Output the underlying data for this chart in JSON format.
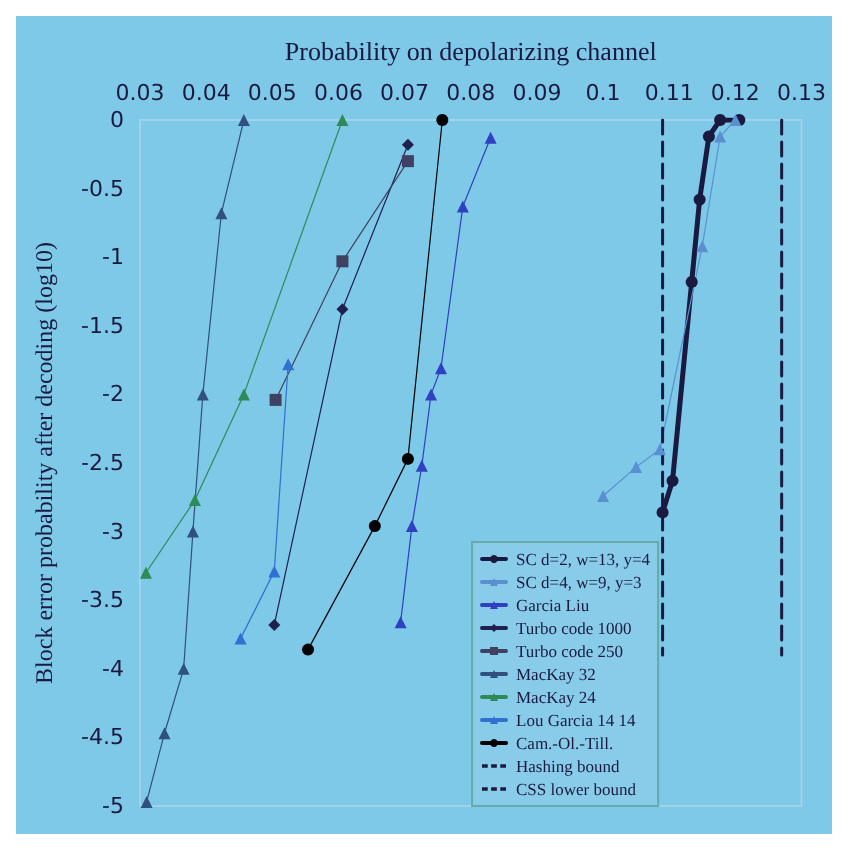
{
  "chart_data": {
    "type": "line",
    "xlabel": "Probability on depolarizing channel",
    "ylabel": "Block error probability after decoding (log10)",
    "xlim": [
      0.03,
      0.13
    ],
    "xticks": [
      0.03,
      0.04,
      0.05,
      0.06,
      0.07,
      0.08,
      0.09,
      0.1,
      0.11,
      0.12,
      0.13
    ],
    "ylim": [
      -5,
      0
    ],
    "yticks": [
      0,
      -0.5,
      -1,
      -1.5,
      -2,
      -2.5,
      -3,
      -3.5,
      -4,
      -4.5,
      -5
    ],
    "legend": "bottom right",
    "series": [
      {
        "name": "SC d=2, w=13, y=4",
        "color": "#1a1a40",
        "marker": "circle",
        "x": [
          0.1206,
          0.1177,
          0.116,
          0.1146,
          0.1134,
          0.1105,
          0.109
        ],
        "values": [
          0,
          0,
          -0.12,
          -0.58,
          -1.18,
          -2.63,
          -2.86
        ]
      },
      {
        "name": "SC d=4, w=9, y=3",
        "color": "#5a90d0",
        "marker": "triangle",
        "x": [
          0.12,
          0.1177,
          0.115,
          0.1086,
          0.105,
          0.1
        ],
        "values": [
          0,
          -0.12,
          -0.92,
          -2.4,
          -2.53,
          -2.74
        ]
      },
      {
        "name": "Garcia Liu",
        "color": "#3040c0",
        "marker": "triangle",
        "x": [
          0.083,
          0.0788,
          0.0755,
          0.074,
          0.0726,
          0.0711,
          0.0694
        ],
        "values": [
          -0.13,
          -0.63,
          -1.81,
          -2,
          -2.52,
          -2.96,
          -3.66
        ]
      },
      {
        "name": "Turbo code 1000",
        "color": "#202050",
        "marker": "diamond",
        "x": [
          0.0705,
          0.0606,
          0.0503
        ],
        "values": [
          -0.18,
          -1.38,
          -3.68
        ]
      },
      {
        "name": "Turbo code 250",
        "color": "#404060",
        "marker": "square",
        "x": [
          0.0705,
          0.0606,
          0.0505
        ],
        "values": [
          -0.3,
          -1.03,
          -2.04
        ]
      },
      {
        "name": "MacKay 32",
        "color": "#305080",
        "marker": "triangle",
        "x": [
          0.0457,
          0.0423,
          0.0395,
          0.038,
          0.0366,
          0.0337,
          0.031
        ],
        "values": [
          0,
          -0.68,
          -2,
          -3,
          -4,
          -4.47,
          -4.97
        ]
      },
      {
        "name": "MacKay 24",
        "color": "#2e8b57",
        "marker": "triangle",
        "x": [
          0.0606,
          0.0457,
          0.0383,
          0.0309
        ],
        "values": [
          0,
          -2,
          -2.77,
          -3.3
        ]
      },
      {
        "name": "Lou Garcia 14 14",
        "color": "#3070d0",
        "marker": "triangle",
        "x": [
          0.0524,
          0.0503,
          0.0452
        ],
        "values": [
          -1.78,
          -3.29,
          -3.78
        ]
      },
      {
        "name": "Cam.-Ol.-Till.",
        "color": "#000000",
        "marker": "circle",
        "x": [
          0.0757,
          0.0705,
          0.0655,
          0.0554
        ],
        "values": [
          0,
          -2.47,
          -2.96,
          -3.86
        ]
      },
      {
        "name": "Hashing bound",
        "color": "#1a1a40",
        "marker": "none",
        "line_style": "dashed",
        "x": [
          0.109,
          0.109
        ],
        "values": [
          0,
          -3.9
        ]
      },
      {
        "name": "CSS lower bound",
        "color": "#1a1a40",
        "marker": "none",
        "line_style": "dashed",
        "x": [
          0.127,
          0.127
        ],
        "values": [
          0,
          -3.9
        ]
      }
    ]
  }
}
